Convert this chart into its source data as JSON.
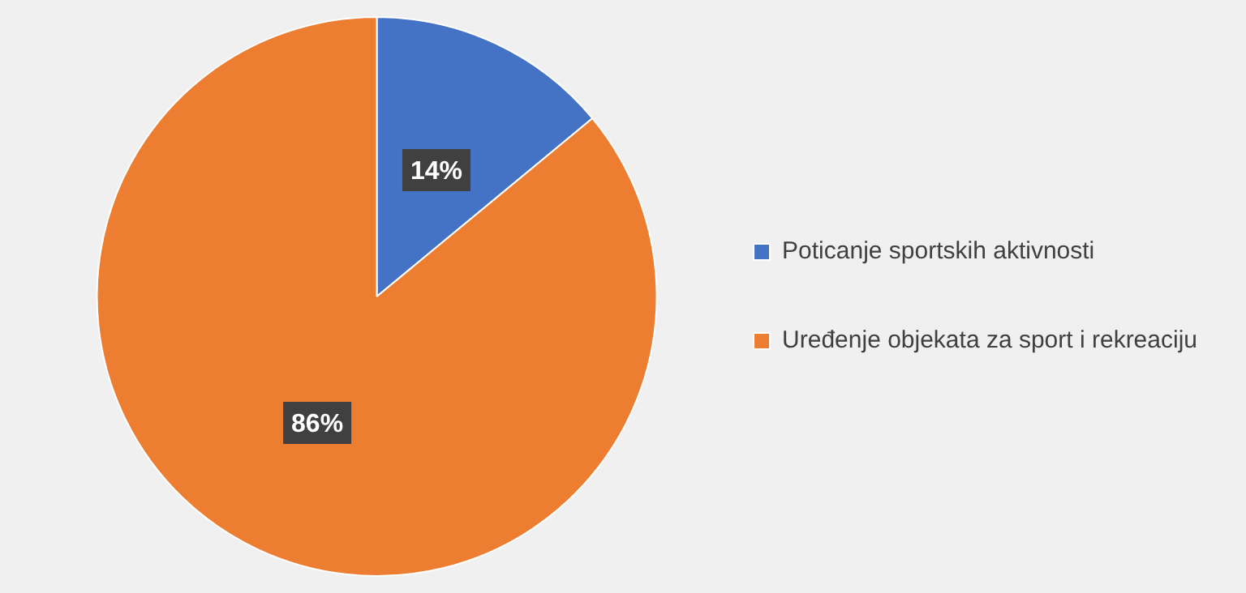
{
  "chart_data": {
    "type": "pie",
    "categories": [
      "Poticanje sportskih aktivnosti",
      "Uređenje objekata za sport i rekreaciju"
    ],
    "values": [
      14,
      86
    ],
    "colors": [
      "#4472c4",
      "#ed7d31"
    ],
    "value_labels": [
      "14%",
      "86%"
    ],
    "legend": "right"
  }
}
